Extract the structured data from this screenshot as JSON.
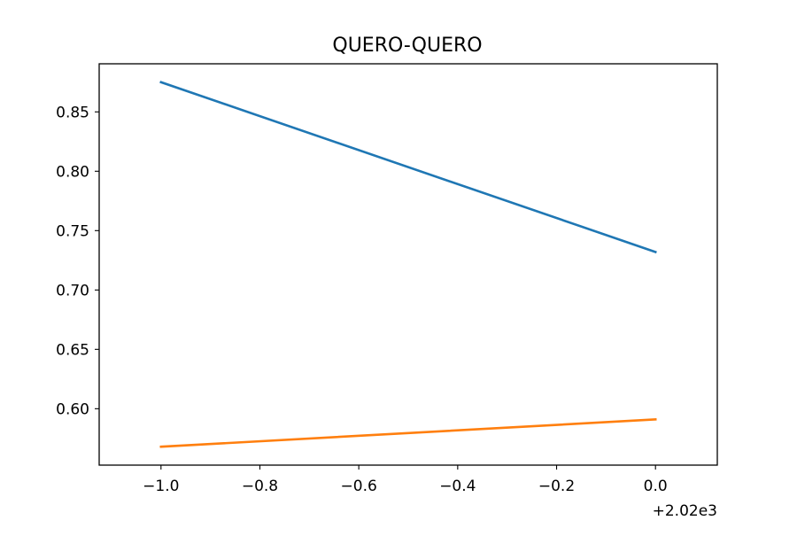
{
  "chart_data": {
    "type": "line",
    "title": "QUERO-QUERO",
    "xlabel": "",
    "ylabel": "",
    "x_offset_label": "+2.02e3",
    "xlim": [
      2018.875,
      2020.125
    ],
    "ylim": [
      0.5525,
      0.8905
    ],
    "xticks": [
      2019.0,
      2019.2,
      2019.4,
      2019.6,
      2019.8,
      2020.0
    ],
    "xtick_labels": [
      "−1.0",
      "−0.8",
      "−0.6",
      "−0.4",
      "−0.2",
      "0.0"
    ],
    "yticks": [
      0.6,
      0.65,
      0.7,
      0.75,
      0.8,
      0.85
    ],
    "ytick_labels": [
      "0.60",
      "0.65",
      "0.70",
      "0.75",
      "0.80",
      "0.85"
    ],
    "grid": false,
    "series": [
      {
        "x": [
          2019,
          2020
        ],
        "values": [
          0.875,
          0.732
        ],
        "color": "#1f77b4"
      },
      {
        "x": [
          2019,
          2020
        ],
        "values": [
          0.568,
          0.591
        ],
        "color": "#ff7f0e"
      }
    ]
  }
}
